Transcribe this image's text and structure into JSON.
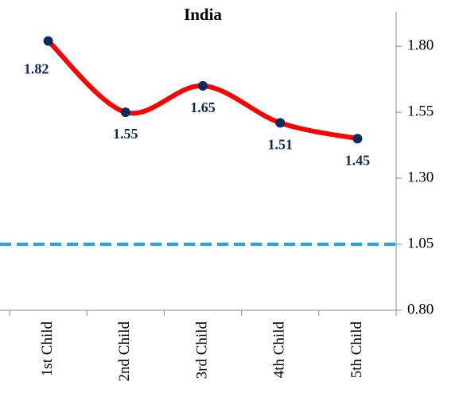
{
  "chart_data": {
    "type": "line",
    "title": "India",
    "categories": [
      "1st Child",
      "2nd Child",
      "3rd Child",
      "4th Child",
      "5th Child"
    ],
    "series": [
      {
        "color": "#ff0000",
        "marker_color": "#0f2a5c",
        "values": [
          1.82,
          1.55,
          1.65,
          1.51,
          1.45
        ]
      }
    ],
    "reference_line": {
      "value": 1.05,
      "color": "#1fa9e1"
    },
    "ylim": [
      0.8,
      1.93
    ],
    "yticks": [
      {
        "value": 0.8,
        "label": "0.80"
      },
      1.05,
      {
        "value": 1.3,
        "label": "1.30"
      },
      1.55,
      {
        "value": 1.8,
        "label": "1.80"
      }
    ],
    "y_axis_side": "right"
  }
}
